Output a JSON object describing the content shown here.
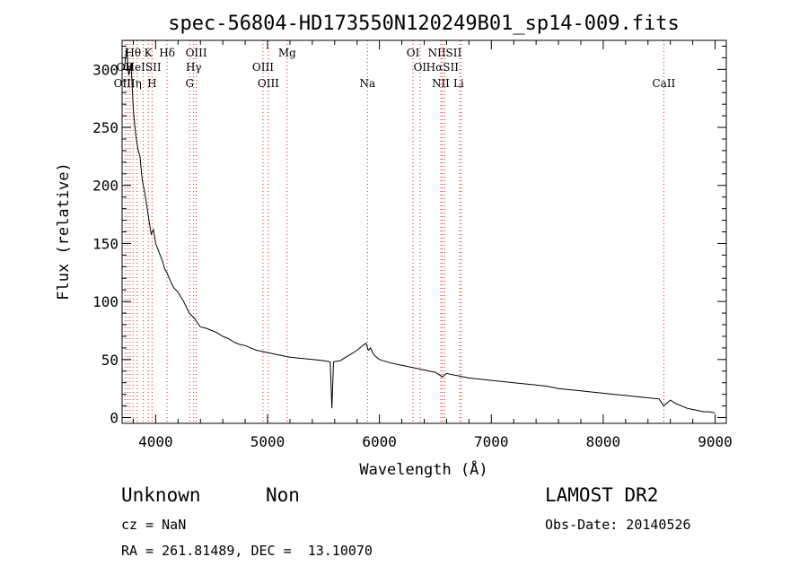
{
  "chart_data": {
    "type": "line",
    "title": "spec-56804-HD173550N120249B01_sp14-009.fits",
    "xlabel": "Wavelength (Å)",
    "ylabel": "Flux (relative)",
    "xlim": [
      3700,
      9100
    ],
    "ylim": [
      -5,
      325
    ],
    "xticks": [
      4000,
      5000,
      6000,
      7000,
      8000,
      9000
    ],
    "yticks": [
      0,
      50,
      100,
      150,
      200,
      250,
      300
    ],
    "grid": false,
    "series": [
      {
        "x": [
          3720,
          3740,
          3760,
          3780,
          3800,
          3820,
          3840,
          3860,
          3880,
          3900,
          3920,
          3940,
          3960,
          3980,
          4000,
          4020,
          4040,
          4060,
          4080,
          4100,
          4130,
          4160,
          4200,
          4250,
          4300,
          4350,
          4400,
          4450,
          4500,
          4550,
          4600,
          4650,
          4700,
          4750,
          4800,
          4850,
          4900,
          4950,
          5000,
          5100,
          5200,
          5300,
          5400,
          5500,
          5560,
          5575,
          5590,
          5650,
          5700,
          5750,
          5800,
          5850,
          5880,
          5900,
          5920,
          5950,
          6000,
          6100,
          6200,
          6300,
          6400,
          6500,
          6563,
          6600,
          6700,
          6800,
          6900,
          7000,
          7100,
          7200,
          7300,
          7400,
          7500,
          7600,
          7700,
          7800,
          7900,
          8000,
          8100,
          8200,
          8300,
          8400,
          8500,
          8540,
          8600,
          8650,
          8700,
          8750,
          8800,
          8850,
          8900,
          8950,
          9000
        ],
        "y": [
          300,
          318,
          295,
          305,
          265,
          245,
          232,
          225,
          205,
          195,
          183,
          170,
          158,
          162,
          150,
          145,
          140,
          135,
          128,
          125,
          118,
          112,
          108,
          100,
          90,
          85,
          78,
          77,
          75,
          73,
          70,
          68,
          65,
          63,
          62,
          60,
          58,
          57,
          56,
          54,
          52,
          51,
          50,
          49,
          48,
          8,
          48,
          49,
          52,
          55,
          58,
          62,
          64,
          58,
          60,
          54,
          50,
          47,
          45,
          43,
          41,
          39,
          35,
          38,
          36,
          34,
          33,
          32,
          31,
          30,
          29,
          28,
          27,
          25,
          24,
          23,
          22,
          21,
          20,
          19,
          18,
          17,
          16,
          10,
          15,
          12,
          10,
          8,
          7,
          6,
          5,
          5,
          4
        ]
      }
    ],
    "line_labels": [
      {
        "label": "Hθ",
        "x": 3798,
        "row": 1
      },
      {
        "label": "K",
        "x": 3934,
        "row": 1
      },
      {
        "label": "Hδ",
        "x": 4102,
        "row": 1
      },
      {
        "label": "OIII",
        "x": 4363,
        "row": 1
      },
      {
        "label": "Mg",
        "x": 5175,
        "row": 1
      },
      {
        "label": "OI",
        "x": 6300,
        "row": 1
      },
      {
        "label": "NIISII",
        "x": 6584,
        "row": 1
      },
      {
        "label": "OII",
        "x": 3727,
        "row": 2
      },
      {
        "label": "HeISII",
        "x": 3889,
        "row": 2
      },
      {
        "label": "Hγ",
        "x": 4340,
        "row": 2
      },
      {
        "label": "OIII",
        "x": 4959,
        "row": 2
      },
      {
        "label": "OI",
        "x": 6363,
        "row": 2
      },
      {
        "label": "HαSII",
        "x": 6563,
        "row": 2
      },
      {
        "label": "OIIIη",
        "x": 3750,
        "row": 3
      },
      {
        "label": "H",
        "x": 3968,
        "row": 3
      },
      {
        "label": "G",
        "x": 4304,
        "row": 3
      },
      {
        "label": "OIII",
        "x": 5007,
        "row": 3
      },
      {
        "label": "Na",
        "x": 5893,
        "row": 3
      },
      {
        "label": "NII",
        "x": 6548,
        "row": 3
      },
      {
        "label": "Li",
        "x": 6708,
        "row": 3
      },
      {
        "label": "CaII",
        "x": 8542,
        "row": 3
      }
    ],
    "line_markers": [
      3727,
      3750,
      3771,
      3798,
      3835,
      3889,
      3934,
      3968,
      4102,
      4304,
      4340,
      4363,
      4959,
      5007,
      5175,
      5893,
      6300,
      6363,
      6548,
      6563,
      6584,
      6717,
      6731,
      8542
    ]
  },
  "info": {
    "object_class": "Unknown",
    "subclass": "Non",
    "survey": "LAMOST DR2",
    "cz": "cz = NaN",
    "obs_date": "Obs-Date: 20140526",
    "coords": "RA = 261.81489, DEC =  13.10070"
  }
}
